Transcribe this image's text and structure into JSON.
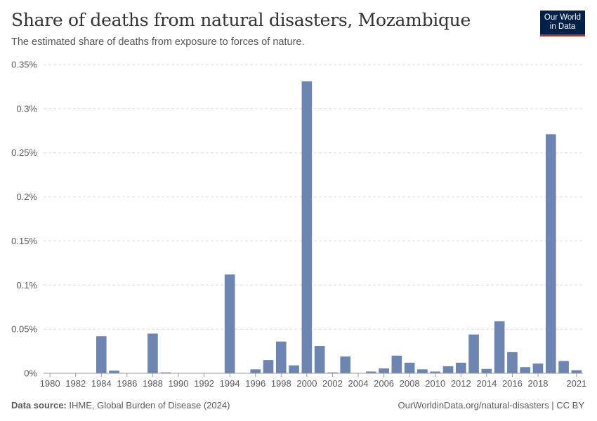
{
  "header": {
    "title": "Share of deaths from natural disasters, Mozambique",
    "subtitle": "The estimated share of deaths from exposure to forces of nature."
  },
  "logo": {
    "line1": "Our World",
    "line2": "in Data"
  },
  "footer": {
    "source_label": "Data source:",
    "source_text": "IHME, Global Burden of Disease (2024)",
    "link": "OurWorldinData.org/natural-disasters",
    "separator": "|",
    "license": "CC BY"
  },
  "colors": {
    "bar": "#6d86b1",
    "grid": "#dddddd",
    "axis": "#5b5b5b",
    "logo_bg": "#002147",
    "logo_accent": "#ce261e"
  },
  "chart_data": {
    "type": "bar",
    "title": "Share of deaths from natural disasters, Mozambique",
    "xlabel": "",
    "ylabel": "",
    "ylim": [
      0,
      0.35
    ],
    "y_ticks": [
      0,
      0.05,
      0.1,
      0.15,
      0.2,
      0.25,
      0.3,
      0.35
    ],
    "y_tick_labels": [
      "0%",
      "0.05%",
      "0.1%",
      "0.15%",
      "0.2%",
      "0.25%",
      "0.3%",
      "0.35%"
    ],
    "x_tick_labels": [
      "1980",
      "1982",
      "1984",
      "1986",
      "1988",
      "1990",
      "1992",
      "1994",
      "1996",
      "1998",
      "2000",
      "2002",
      "2004",
      "2006",
      "2008",
      "2010",
      "2012",
      "2014",
      "2016",
      "2018",
      "2021"
    ],
    "grid": true,
    "categories": [
      1980,
      1981,
      1982,
      1983,
      1984,
      1985,
      1986,
      1987,
      1988,
      1989,
      1990,
      1991,
      1992,
      1993,
      1994,
      1995,
      1996,
      1997,
      1998,
      1999,
      2000,
      2001,
      2002,
      2003,
      2004,
      2005,
      2006,
      2007,
      2008,
      2009,
      2010,
      2011,
      2012,
      2013,
      2014,
      2015,
      2016,
      2017,
      2018,
      2019,
      2020,
      2021
    ],
    "values": [
      0,
      0,
      0,
      0,
      0.042,
      0.003,
      0,
      0,
      0.045,
      0.001,
      0,
      0,
      0,
      0,
      0.112,
      0,
      0.0045,
      0.015,
      0.036,
      0.009,
      0.331,
      0.031,
      0.001,
      0.019,
      0,
      0.002,
      0.0055,
      0.02,
      0.012,
      0.0045,
      0.002,
      0.008,
      0.012,
      0.044,
      0.005,
      0.059,
      0.024,
      0.007,
      0.011,
      0.271,
      0.014,
      0.0035
    ],
    "units": "%"
  }
}
